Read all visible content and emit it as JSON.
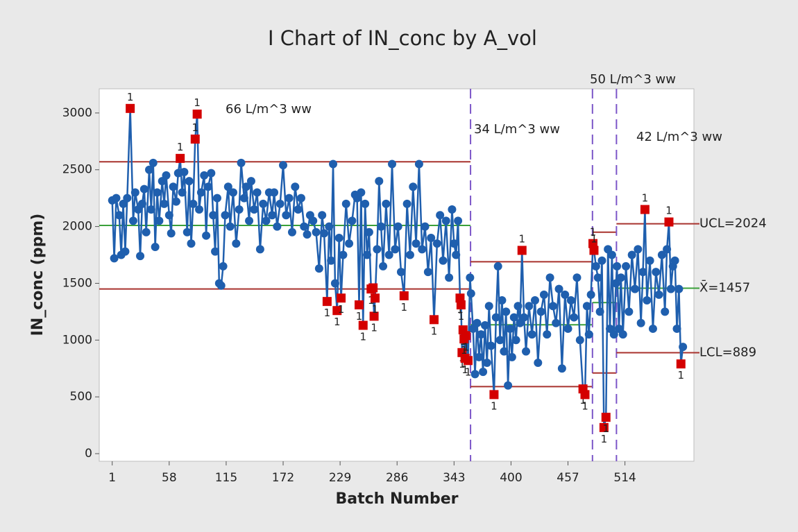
{
  "chart_data": {
    "type": "control",
    "title": "I Chart of IN_conc by A_vol",
    "x_label": "Batch Number",
    "y_label": "IN_conc (ppm)",
    "xlim": [
      -12,
      583
    ],
    "ylim": [
      -67,
      3213
    ],
    "xticks": [
      1,
      58,
      115,
      172,
      229,
      286,
      343,
      400,
      457,
      514
    ],
    "yticks": [
      0,
      500,
      1000,
      1500,
      2000,
      2500,
      3000
    ],
    "line_color": "#1f5fae",
    "flag_color": "#d40000",
    "limit_color": "#a8322d",
    "center_color": "#3aa03a",
    "boundary_color": "#7b55c8",
    "stages": [
      {
        "label": "66 L/m^3 ww",
        "start": 1,
        "end": 359,
        "ucl": 2570,
        "mean": 2010,
        "lcl": 1450
      },
      {
        "label": "34 L/m^3 ww",
        "start": 360,
        "end": 481,
        "ucl": 1690,
        "mean": 1135,
        "lcl": 590
      },
      {
        "label": "50 L/m^3 ww",
        "start": 482,
        "end": 505,
        "ucl": 1950,
        "mean": 1330,
        "lcl": 710
      },
      {
        "label": "42 L/m^3 ww",
        "start": 506,
        "end": 572,
        "ucl": {
          "value": 2024,
          "label": "UCL=2024"
        },
        "mean": {
          "value": 1457,
          "label": "X̄=1457"
        },
        "lcl": {
          "value": 889,
          "label": "LCL=889"
        }
      }
    ],
    "series": [
      {
        "x": [
          1,
          3,
          5,
          8,
          10,
          12,
          14,
          16,
          19,
          22,
          24,
          27,
          29,
          31,
          33,
          35,
          38,
          40,
          42,
          44,
          46,
          48,
          51,
          53,
          55,
          58,
          60,
          62,
          65,
          67,
          69,
          71,
          73,
          76,
          78,
          80,
          82,
          84,
          86,
          88,
          90,
          93,
          95,
          97,
          100,
          102,
          104,
          106,
          108,
          110,
          112,
          114,
          117,
          119,
          122,
          125,
          128,
          130,
          133,
          135,
          138,
          140,
          143,
          146,
          149,
          152,
          155,
          158,
          161,
          163,
          166,
          169,
          172,
          175,
          178,
          181,
          184,
          187,
          190,
          193,
          196,
          199,
          202,
          205,
          208,
          211,
          213,
          216,
          218,
          220,
          222,
          224,
          226,
          228,
          230,
          232,
          235,
          238,
          241,
          244,
          246,
          248,
          250,
          252,
          254,
          256,
          258,
          260,
          262,
          263,
          264,
          266,
          268,
          270,
          272,
          275,
          278,
          281,
          284,
          287,
          290,
          293,
          296,
          299,
          302,
          305,
          308,
          311,
          314,
          317,
          320,
          323,
          326,
          329,
          332,
          335,
          338,
          341,
          343,
          345,
          347,
          349,
          350,
          351,
          352,
          353,
          354,
          355,
          357,
          359,
          360,
          362,
          364,
          366,
          368,
          370,
          372,
          374,
          376,
          378,
          380,
          383,
          385,
          387,
          389,
          391,
          393,
          395,
          397,
          399,
          401,
          403,
          405,
          407,
          409,
          411,
          413,
          415,
          418,
          421,
          424,
          427,
          430,
          433,
          436,
          439,
          442,
          445,
          448,
          451,
          454,
          457,
          460,
          463,
          466,
          469,
          472,
          474,
          476,
          478,
          480,
          482,
          483,
          485,
          487,
          489,
          491,
          493,
          495,
          497,
          499,
          501,
          503,
          505,
          506,
          508,
          510,
          512,
          515,
          518,
          521,
          524,
          527,
          530,
          532,
          534,
          536,
          539,
          542,
          545,
          548,
          551,
          554,
          556,
          558,
          560,
          562,
          564,
          566,
          568,
          570,
          572
        ],
        "values": [
          2230,
          1720,
          2250,
          2100,
          1750,
          2200,
          1780,
          2250,
          3040,
          2050,
          2300,
          2150,
          1740,
          2200,
          2330,
          1950,
          2500,
          2150,
          2560,
          1820,
          2300,
          2050,
          2400,
          2200,
          2450,
          2100,
          1940,
          2350,
          2220,
          2470,
          2600,
          2300,
          2480,
          1950,
          2400,
          1850,
          2200,
          2770,
          2990,
          2150,
          2300,
          2450,
          1920,
          2350,
          2470,
          2100,
          1780,
          2250,
          1500,
          1480,
          1650,
          2100,
          2350,
          2000,
          2300,
          1850,
          2150,
          2560,
          2250,
          2350,
          2050,
          2400,
          2150,
          2300,
          1800,
          2200,
          2050,
          2300,
          2100,
          2300,
          2000,
          2200,
          2540,
          2100,
          2250,
          1950,
          2350,
          2150,
          2250,
          2000,
          1930,
          2100,
          2050,
          1950,
          1630,
          2100,
          1940,
          1340,
          2000,
          1700,
          2550,
          1500,
          1260,
          1900,
          1370,
          1750,
          2200,
          1850,
          2050,
          2280,
          2250,
          1310,
          2300,
          1130,
          2200,
          1750,
          1950,
          1450,
          1460,
          1210,
          1370,
          1800,
          2400,
          2000,
          1650,
          2200,
          1750,
          2550,
          1800,
          2000,
          1600,
          1390,
          2200,
          1750,
          2350,
          1850,
          2550,
          1800,
          2000,
          1600,
          1900,
          1180,
          1850,
          2100,
          1700,
          2050,
          1550,
          2150,
          1850,
          1750,
          2050,
          1370,
          1310,
          890,
          1090,
          1010,
          840,
          1040,
          820,
          1550,
          1410,
          1100,
          700,
          1150,
          850,
          1050,
          720,
          1130,
          800,
          1300,
          950,
          520,
          1200,
          1650,
          1000,
          1350,
          900,
          1250,
          600,
          1100,
          850,
          1200,
          1000,
          1300,
          1150,
          1790,
          1200,
          900,
          1300,
          1050,
          1350,
          800,
          1250,
          1400,
          1050,
          1550,
          1300,
          1150,
          1450,
          750,
          1400,
          1100,
          1350,
          1200,
          1550,
          1000,
          570,
          520,
          1300,
          1050,
          1400,
          1850,
          1790,
          1650,
          1550,
          1250,
          1700,
          230,
          320,
          1800,
          1100,
          1750,
          1050,
          1500,
          1650,
          1100,
          1550,
          1050,
          1650,
          1250,
          1750,
          1450,
          1800,
          1150,
          1600,
          2150,
          1350,
          1700,
          1100,
          1600,
          1400,
          1750,
          1250,
          1800,
          2040,
          1450,
          1650,
          1700,
          1100,
          1450,
          790,
          940
        ],
        "flags": [
          null,
          null,
          null,
          null,
          null,
          null,
          null,
          null,
          "1",
          null,
          null,
          null,
          null,
          null,
          null,
          null,
          null,
          null,
          null,
          null,
          null,
          null,
          null,
          null,
          null,
          null,
          null,
          null,
          null,
          null,
          "1",
          null,
          null,
          null,
          null,
          null,
          null,
          "1",
          "1",
          null,
          null,
          null,
          null,
          null,
          null,
          null,
          null,
          null,
          null,
          null,
          null,
          null,
          null,
          null,
          null,
          null,
          null,
          null,
          null,
          null,
          null,
          null,
          null,
          null,
          null,
          null,
          null,
          null,
          null,
          null,
          null,
          null,
          null,
          null,
          null,
          null,
          null,
          null,
          null,
          null,
          null,
          null,
          null,
          null,
          null,
          null,
          null,
          "1",
          null,
          null,
          null,
          null,
          "1",
          null,
          "1",
          null,
          null,
          null,
          null,
          null,
          null,
          "1",
          null,
          "1",
          null,
          null,
          null,
          "1",
          "1",
          "1",
          "1",
          null,
          null,
          null,
          null,
          null,
          null,
          null,
          null,
          null,
          null,
          "1",
          null,
          null,
          null,
          null,
          null,
          null,
          null,
          null,
          null,
          "1",
          null,
          null,
          null,
          null,
          null,
          null,
          null,
          null,
          null,
          "1",
          "1",
          "1",
          "1",
          "1",
          "1",
          "1",
          "1",
          null,
          null,
          null,
          null,
          null,
          null,
          null,
          null,
          null,
          null,
          null,
          null,
          "1",
          null,
          null,
          null,
          null,
          null,
          null,
          null,
          null,
          null,
          null,
          null,
          null,
          null,
          "1",
          null,
          null,
          null,
          null,
          null,
          null,
          null,
          null,
          null,
          null,
          null,
          null,
          null,
          null,
          null,
          null,
          null,
          null,
          null,
          null,
          "1",
          "1",
          null,
          null,
          null,
          "1",
          "1",
          null,
          null,
          null,
          null,
          "1",
          "1",
          null,
          null,
          null,
          null,
          null,
          null,
          null,
          null,
          null,
          null,
          null,
          null,
          null,
          null,
          null,
          null,
          "1",
          null,
          null,
          null,
          null,
          null,
          null,
          null,
          null,
          "1",
          null,
          null,
          null,
          null,
          null,
          "1",
          null
        ]
      }
    ]
  }
}
